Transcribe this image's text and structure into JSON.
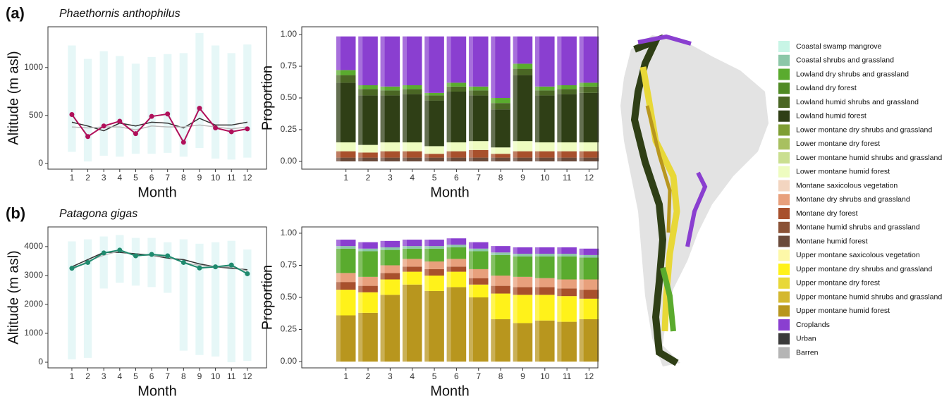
{
  "chart_data": [
    {
      "type": "line",
      "tag": "(a)",
      "title": "Phaethornis anthophilus",
      "xlabel": "Month",
      "ylabel": "Altitude (m asl)",
      "x": [
        1,
        2,
        3,
        4,
        5,
        6,
        7,
        8,
        9,
        10,
        11,
        12
      ],
      "xlim": [
        -0.5,
        13.2
      ],
      "xticks": [
        1,
        2,
        3,
        4,
        5,
        6,
        7,
        8,
        9,
        10,
        11,
        12
      ],
      "ylim": [
        -60,
        1425
      ],
      "yticks": [
        0,
        500,
        1000
      ],
      "ranges": {
        "color": "#e6f7f7",
        "low": [
          120,
          20,
          80,
          70,
          100,
          100,
          110,
          70,
          160,
          50,
          40,
          60
        ],
        "high": [
          1230,
          1090,
          1170,
          1120,
          1040,
          1110,
          1140,
          1150,
          1360,
          1230,
          1150,
          1240
        ]
      },
      "series": [
        {
          "color": "#333333",
          "values": [
            430,
            390,
            340,
            420,
            390,
            430,
            420,
            370,
            470,
            400,
            400,
            430
          ]
        },
        {
          "color": "#bbbbbb",
          "values": [
            380,
            370,
            380,
            380,
            350,
            390,
            380,
            380,
            400,
            380,
            360,
            380
          ]
        },
        {
          "color": "#b0105a",
          "markers": true,
          "values": [
            510,
            280,
            390,
            440,
            310,
            490,
            515,
            220,
            575,
            370,
            330,
            360
          ]
        }
      ]
    },
    {
      "type": "stacked_bar",
      "xlabel": "Month",
      "ylabel": "Proportion",
      "x": [
        1,
        2,
        3,
        4,
        5,
        6,
        7,
        8,
        9,
        10,
        11,
        12
      ],
      "xlim": [
        -1,
        12.4
      ],
      "xticks": [
        1,
        2,
        3,
        4,
        5,
        6,
        7,
        8,
        9,
        10,
        11,
        12
      ],
      "ylim": [
        -0.061,
        1.061
      ],
      "yticks": [
        {
          "value": 0,
          "label": "0.00"
        },
        {
          "value": 0.25,
          "label": "0.25"
        },
        {
          "value": 0.5,
          "label": "0.50"
        },
        {
          "value": 0.75,
          "label": "0.75"
        },
        {
          "value": 1,
          "label": "1.00"
        }
      ],
      "series": [
        {
          "name": "Montane humid forest",
          "color": "#6a4a3a",
          "values": [
            0.03,
            0.03,
            0.03,
            0.03,
            0.03,
            0.03,
            0.03,
            0.03,
            0.03,
            0.03,
            0.03,
            0.03
          ]
        },
        {
          "name": "Montane dry forest",
          "color": "#a8502c",
          "values": [
            0.05,
            0.04,
            0.05,
            0.05,
            0.03,
            0.05,
            0.06,
            0.03,
            0.05,
            0.05,
            0.05,
            0.05
          ]
        },
        {
          "name": "Lower montane humid forest",
          "color": "#eefcc0",
          "values": [
            0.07,
            0.06,
            0.07,
            0.07,
            0.06,
            0.07,
            0.07,
            0.05,
            0.08,
            0.07,
            0.07,
            0.07
          ]
        },
        {
          "name": "Lowland humid forest",
          "color": "#2f3f16",
          "values": [
            0.47,
            0.39,
            0.37,
            0.38,
            0.36,
            0.4,
            0.36,
            0.3,
            0.52,
            0.37,
            0.38,
            0.39
          ]
        },
        {
          "name": "Lowland humid shrubs and grassland",
          "color": "#4a6624",
          "values": [
            0.06,
            0.05,
            0.04,
            0.04,
            0.04,
            0.04,
            0.04,
            0.05,
            0.05,
            0.04,
            0.04,
            0.05
          ]
        },
        {
          "name": "Lowland dry shrubs and grassland",
          "color": "#5aab2e",
          "values": [
            0.04,
            0.03,
            0.03,
            0.03,
            0.02,
            0.03,
            0.03,
            0.04,
            0.04,
            0.03,
            0.03,
            0.03
          ]
        },
        {
          "name": "Croplands",
          "color": "#8a3fd0",
          "values": [
            0.265,
            0.385,
            0.395,
            0.385,
            0.445,
            0.365,
            0.395,
            0.485,
            0.215,
            0.395,
            0.385,
            0.365
          ]
        }
      ]
    },
    {
      "type": "line",
      "tag": "(b)",
      "title": "Patagona gigas",
      "xlabel": "Month",
      "ylabel": "Altitude (m asl)",
      "x": [
        1,
        2,
        3,
        4,
        5,
        6,
        7,
        8,
        9,
        10,
        11,
        12
      ],
      "xlim": [
        -0.5,
        13.2
      ],
      "xticks": [
        1,
        2,
        3,
        4,
        5,
        6,
        7,
        8,
        9,
        10,
        11,
        12
      ],
      "ylim": [
        -195,
        4680
      ],
      "yticks": [
        0,
        1000,
        2000,
        3000,
        4000
      ],
      "ranges": {
        "color": "#e6f7f7",
        "low": [
          100,
          150,
          2550,
          2750,
          2650,
          2600,
          2400,
          400,
          250,
          200,
          0,
          50
        ],
        "high": [
          4180,
          4250,
          4350,
          4400,
          4300,
          4300,
          4150,
          4250,
          4100,
          4150,
          4200,
          3900
        ]
      },
      "series": [
        {
          "color": "#333333",
          "values": [
            3300,
            3550,
            3800,
            3800,
            3750,
            3700,
            3600,
            3550,
            3400,
            3300,
            3250,
            3200
          ]
        },
        {
          "color": "#bbbbbb",
          "values": [
            3200,
            3500,
            3700,
            3850,
            3700,
            3700,
            3650,
            3450,
            3350,
            3300,
            3300,
            3150
          ]
        },
        {
          "color": "#1f8a6e",
          "markers": true,
          "values": [
            3250,
            3450,
            3780,
            3880,
            3680,
            3730,
            3680,
            3450,
            3260,
            3300,
            3360,
            3060
          ]
        }
      ]
    },
    {
      "type": "stacked_bar",
      "xlabel": "Month",
      "ylabel": "Proportion",
      "x": [
        1,
        2,
        3,
        4,
        5,
        6,
        7,
        8,
        9,
        10,
        11,
        12
      ],
      "xlim": [
        -1,
        12.4
      ],
      "xticks": [
        1,
        2,
        3,
        4,
        5,
        6,
        7,
        8,
        9,
        10,
        11,
        12
      ],
      "ylim": [
        -0.049,
        1.049
      ],
      "yticks": [
        {
          "value": 0,
          "label": "0.00"
        },
        {
          "value": 0.25,
          "label": "0.25"
        },
        {
          "value": 0.5,
          "label": "0.50"
        },
        {
          "value": 0.75,
          "label": "0.75"
        },
        {
          "value": 1,
          "label": "1.00"
        }
      ],
      "series": [
        {
          "name": "Upper montane humid forest",
          "color": "#b8961e",
          "values": [
            0.36,
            0.38,
            0.52,
            0.6,
            0.55,
            0.58,
            0.5,
            0.33,
            0.3,
            0.32,
            0.31,
            0.33
          ]
        },
        {
          "name": "Upper montane dry shrubs and grassland",
          "color": "#fff21a",
          "values": [
            0.2,
            0.16,
            0.12,
            0.1,
            0.12,
            0.12,
            0.1,
            0.2,
            0.22,
            0.2,
            0.2,
            0.16
          ]
        },
        {
          "name": "Montane dry forest",
          "color": "#a8502c",
          "values": [
            0.06,
            0.05,
            0.05,
            0.04,
            0.05,
            0.04,
            0.05,
            0.06,
            0.06,
            0.06,
            0.06,
            0.07
          ]
        },
        {
          "name": "Montane dry shrubs and grassland",
          "color": "#e8a07c",
          "values": [
            0.07,
            0.07,
            0.06,
            0.06,
            0.06,
            0.06,
            0.07,
            0.08,
            0.08,
            0.07,
            0.07,
            0.08
          ]
        },
        {
          "name": "Lowland dry shrubs and grassland",
          "color": "#5aab2e",
          "values": [
            0.19,
            0.2,
            0.12,
            0.08,
            0.1,
            0.09,
            0.14,
            0.16,
            0.16,
            0.17,
            0.18,
            0.17
          ]
        },
        {
          "name": "Coastal shrubs and grassland",
          "color": "#8cc7a8",
          "values": [
            0.02,
            0.02,
            0.02,
            0.02,
            0.02,
            0.02,
            0.02,
            0.02,
            0.02,
            0.02,
            0.02,
            0.02
          ]
        },
        {
          "name": "Croplands",
          "color": "#8a3fd0",
          "values": [
            0.05,
            0.05,
            0.05,
            0.05,
            0.05,
            0.05,
            0.05,
            0.05,
            0.05,
            0.05,
            0.05,
            0.05
          ]
        }
      ]
    }
  ],
  "legend": {
    "entries": [
      {
        "label": "Coastal swamp mangrove",
        "color": "#c8f5e6"
      },
      {
        "label": "Coastal shrubs and grassland",
        "color": "#8cc7a8"
      },
      {
        "label": "Lowland dry shrubs and grassland",
        "color": "#5aab2e"
      },
      {
        "label": "Lowland dry forest",
        "color": "#4f8a24"
      },
      {
        "label": "Lowland humid shrubs and grassland",
        "color": "#4a6624"
      },
      {
        "label": "Lowland humid forest",
        "color": "#2f3f16"
      },
      {
        "label": "Lower montane dry shrubs and grassland",
        "color": "#7f9e34"
      },
      {
        "label": "Lower montane dry forest",
        "color": "#a8c060"
      },
      {
        "label": "Lower montane humid shrubs and grassland",
        "color": "#cadf90"
      },
      {
        "label": "Lower montane humid forest",
        "color": "#eefcc0"
      },
      {
        "label": "Montane saxicolous vegetation",
        "color": "#f3d5c0"
      },
      {
        "label": "Montane dry shrubs and grassland",
        "color": "#e8a07c"
      },
      {
        "label": "Montane dry forest",
        "color": "#a8502c"
      },
      {
        "label": "Montane humid shrubs and grassland",
        "color": "#8a5236"
      },
      {
        "label": "Montane humid forest",
        "color": "#6a4a3a"
      },
      {
        "label": "Upper montane saxicolous vegetation",
        "color": "#fdf8a8"
      },
      {
        "label": "Upper montane dry shrubs and grassland",
        "color": "#fff21a"
      },
      {
        "label": "Upper montane dry forest",
        "color": "#e8d838"
      },
      {
        "label": "Upper montane humid shrubs and grassland",
        "color": "#d4b830"
      },
      {
        "label": "Upper montane humid forest",
        "color": "#b8961e"
      },
      {
        "label": "Croplands",
        "color": "#8a3fd0"
      },
      {
        "label": "Urban",
        "color": "#3a3a3a"
      },
      {
        "label": "Barren",
        "color": "#b5b5b5"
      }
    ]
  }
}
